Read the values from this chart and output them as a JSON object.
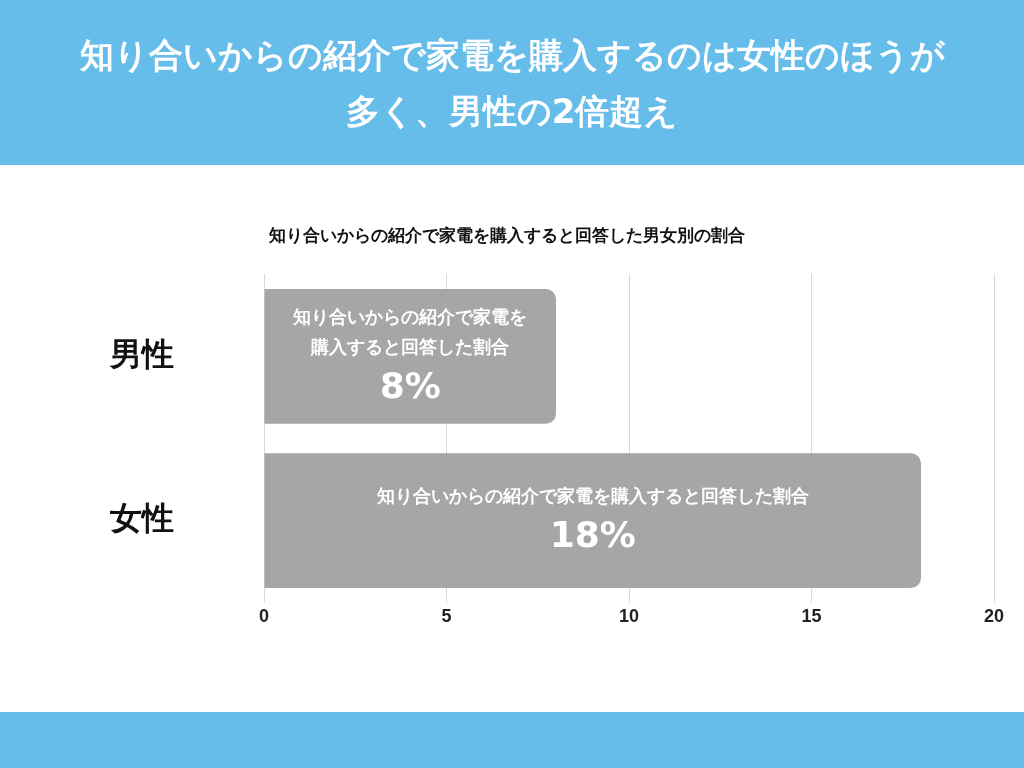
{
  "chart_data": {
    "type": "bar",
    "orientation": "horizontal",
    "title": "知り合いからの紹介で家電を購入するのは女性のほうが多く、男性の2倍超え",
    "subtitle": "知り合いからの紹介で家電を購入すると回答した男女別の割合",
    "categories": [
      "男性",
      "女性"
    ],
    "values": [
      8,
      18
    ],
    "color": "#a6a6a6",
    "value_labels": [
      "8%",
      "18%"
    ],
    "annotations": [
      "知り合いからの紹介で家電を購入すると回答した割合",
      "知り合いからの紹介で家電を購入すると回答した割合"
    ],
    "xlim": [
      0,
      20
    ],
    "xticks": [
      0,
      5,
      10,
      15,
      20
    ],
    "grid": "x",
    "legend": false
  }
}
